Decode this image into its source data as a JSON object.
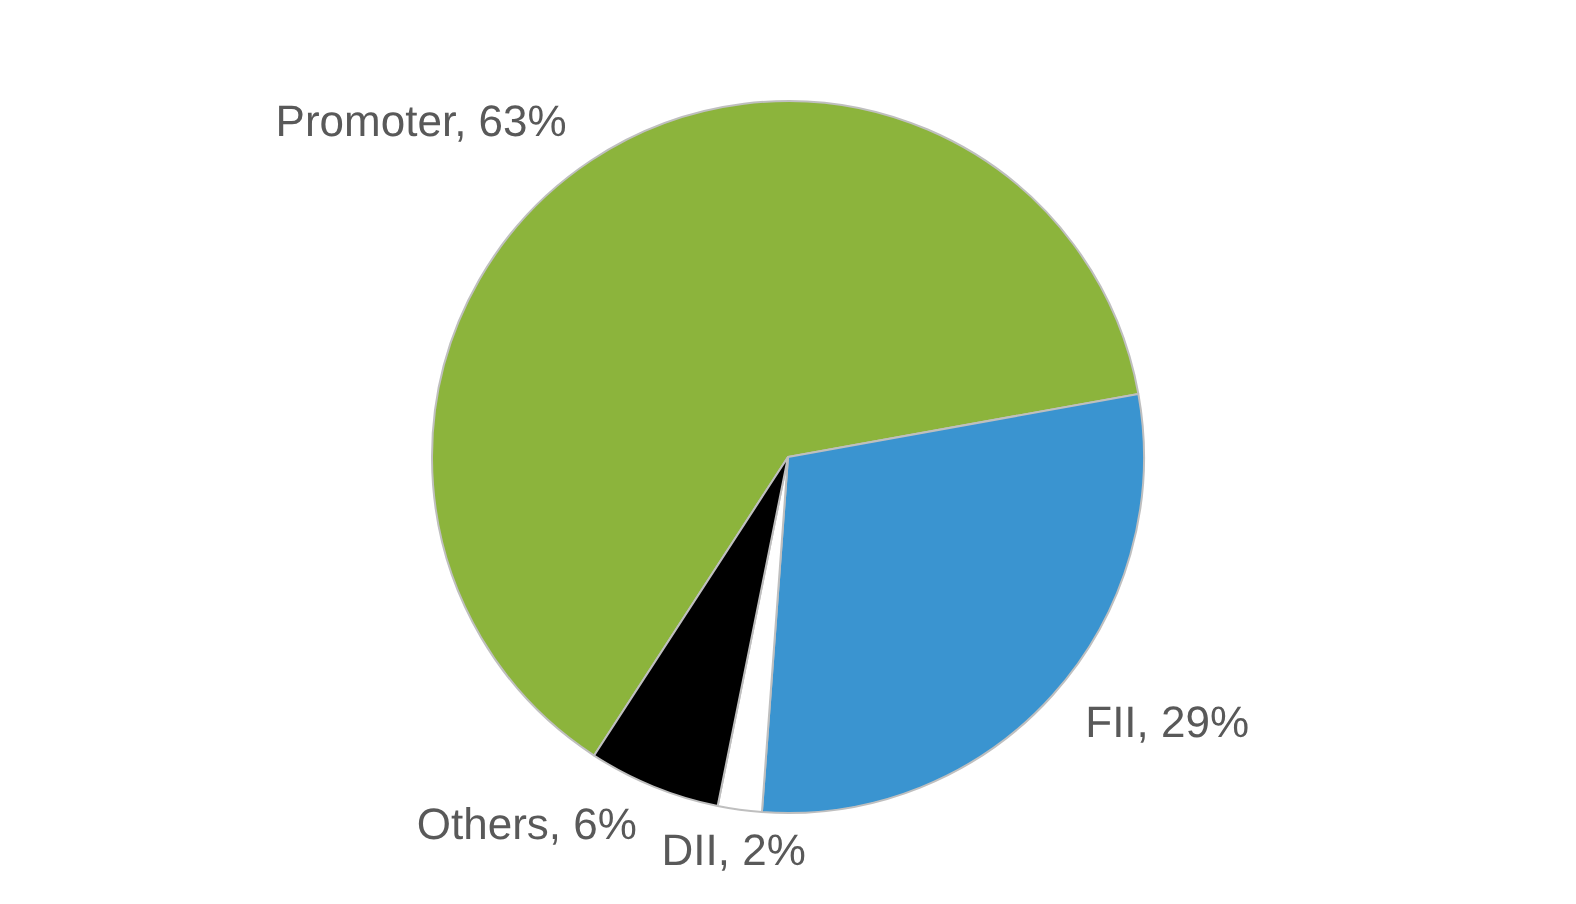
{
  "chart_data": {
    "type": "pie",
    "categories": [
      "Promoter",
      "FII",
      "DII",
      "Others"
    ],
    "values": [
      63,
      29,
      2,
      6
    ],
    "value_labels": [
      "63%",
      "29%",
      "2%",
      "6%"
    ],
    "colors": [
      "#8cb43c",
      "#3a94d0",
      "#ffffff",
      "#000000"
    ],
    "legend": false
  }
}
